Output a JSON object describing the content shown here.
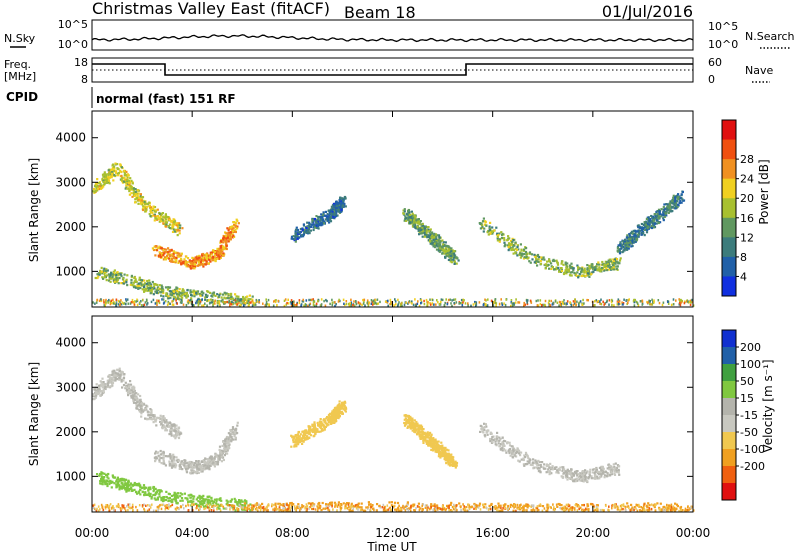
{
  "header": {
    "station": "Christmas Valley East (fitACF)",
    "beam": "Beam 18",
    "date": "01/Jul/2016"
  },
  "noise_panel": {
    "left_label": "N.Sky",
    "left_ticks": [
      "10^5",
      "10^0"
    ],
    "right_ticks": [
      "10^5",
      "10^0"
    ],
    "right_label": "N.Search"
  },
  "freq_panel": {
    "label_line1": "Freq.",
    "label_line2": "[MHz]",
    "left_ticks": [
      "18",
      "8"
    ],
    "right_ticks": [
      "60",
      "0"
    ],
    "right_label": "Nave"
  },
  "cpid": {
    "label": "CPID",
    "mode": "normal (fast) 151 RF"
  },
  "xaxis": {
    "label": "Time UT",
    "ticks": [
      "00:00",
      "04:00",
      "08:00",
      "12:00",
      "16:00",
      "20:00",
      "00:00"
    ]
  },
  "colors": {
    "power": [
      "#1030e0",
      "#2060a8",
      "#3c7c7c",
      "#609860",
      "#a8c030",
      "#f0d020",
      "#f09020",
      "#f05010",
      "#e01010"
    ],
    "velocity": [
      "#e01010",
      "#f06010",
      "#f0a020",
      "#f0c850",
      "#c8c8c0",
      "#b4b4ac",
      "#80c840",
      "#40a040",
      "#2060a8",
      "#1030d0"
    ]
  },
  "chart_data": [
    {
      "type": "heatmap",
      "name": "power",
      "ylabel": "Slant Range [km]",
      "yticks": [
        "1000",
        "2000",
        "3000",
        "4000"
      ],
      "ylim": [
        200,
        4600
      ],
      "xlim_hours": [
        0,
        24
      ],
      "colorbar_label": "Power [dB]",
      "colorbar_ticks": [
        "4",
        "8",
        "12",
        "16",
        "20",
        "24",
        "28"
      ],
      "features": [
        {
          "t": [
            0.0,
            1.0,
            2.0,
            3.5
          ],
          "r": [
            2850,
            3350,
            2500,
            1950
          ],
          "val": 18
        },
        {
          "t": [
            2.5,
            4.0,
            5.0,
            5.7
          ],
          "r": [
            1500,
            1200,
            1400,
            2100
          ],
          "val": 24
        },
        {
          "t": [
            0.2,
            1.5,
            3.0,
            4.5,
            6.3
          ],
          "r": [
            1000,
            800,
            550,
            450,
            350
          ],
          "val": 14
        },
        {
          "t": [
            8.0,
            9.5,
            10.0
          ],
          "r": [
            1800,
            2300,
            2600
          ],
          "val": 6
        },
        {
          "t": [
            12.5,
            13.5,
            14.5
          ],
          "r": [
            2300,
            1800,
            1300
          ],
          "val": 12
        },
        {
          "t": [
            15.5,
            17.5,
            19.5,
            21.0
          ],
          "r": [
            2100,
            1300,
            1000,
            1200
          ],
          "val": 14
        },
        {
          "t": [
            21.0,
            23.5
          ],
          "r": [
            1500,
            2700
          ],
          "val": 8
        }
      ]
    },
    {
      "type": "heatmap",
      "name": "velocity",
      "ylabel": "Slant Range [km]",
      "yticks": [
        "1000",
        "2000",
        "3000",
        "4000"
      ],
      "ylim": [
        200,
        4600
      ],
      "xlim_hours": [
        0,
        24
      ],
      "colorbar_label": "Velocity [m s⁻¹]",
      "colorbar_ticks": [
        "200",
        "100",
        "50",
        "15",
        "-15",
        "-50",
        "-100",
        "-200"
      ],
      "features": [
        {
          "t": [
            0.0,
            1.0,
            2.0,
            3.5
          ],
          "r": [
            2850,
            3350,
            2500,
            1950
          ],
          "val": 0
        },
        {
          "t": [
            2.5,
            4.0,
            5.0,
            5.7
          ],
          "r": [
            1500,
            1200,
            1400,
            2100
          ],
          "val": 0
        },
        {
          "t": [
            0.2,
            1.5,
            3.0,
            4.5,
            6.3
          ],
          "r": [
            1000,
            800,
            550,
            450,
            350
          ],
          "val": 30
        },
        {
          "t": [
            8.0,
            9.5,
            10.0
          ],
          "r": [
            1800,
            2300,
            2600
          ],
          "val": -40
        },
        {
          "t": [
            12.5,
            13.5,
            14.5
          ],
          "r": [
            2300,
            1800,
            1300
          ],
          "val": -30
        },
        {
          "t": [
            15.5,
            17.5,
            19.5,
            21.0
          ],
          "r": [
            2100,
            1300,
            1000,
            1200
          ],
          "val": 0
        },
        {
          "t": [
            6.0,
            12.0,
            18.0,
            24.0
          ],
          "r": [
            300,
            320,
            280,
            300
          ],
          "val": -60
        }
      ]
    }
  ]
}
